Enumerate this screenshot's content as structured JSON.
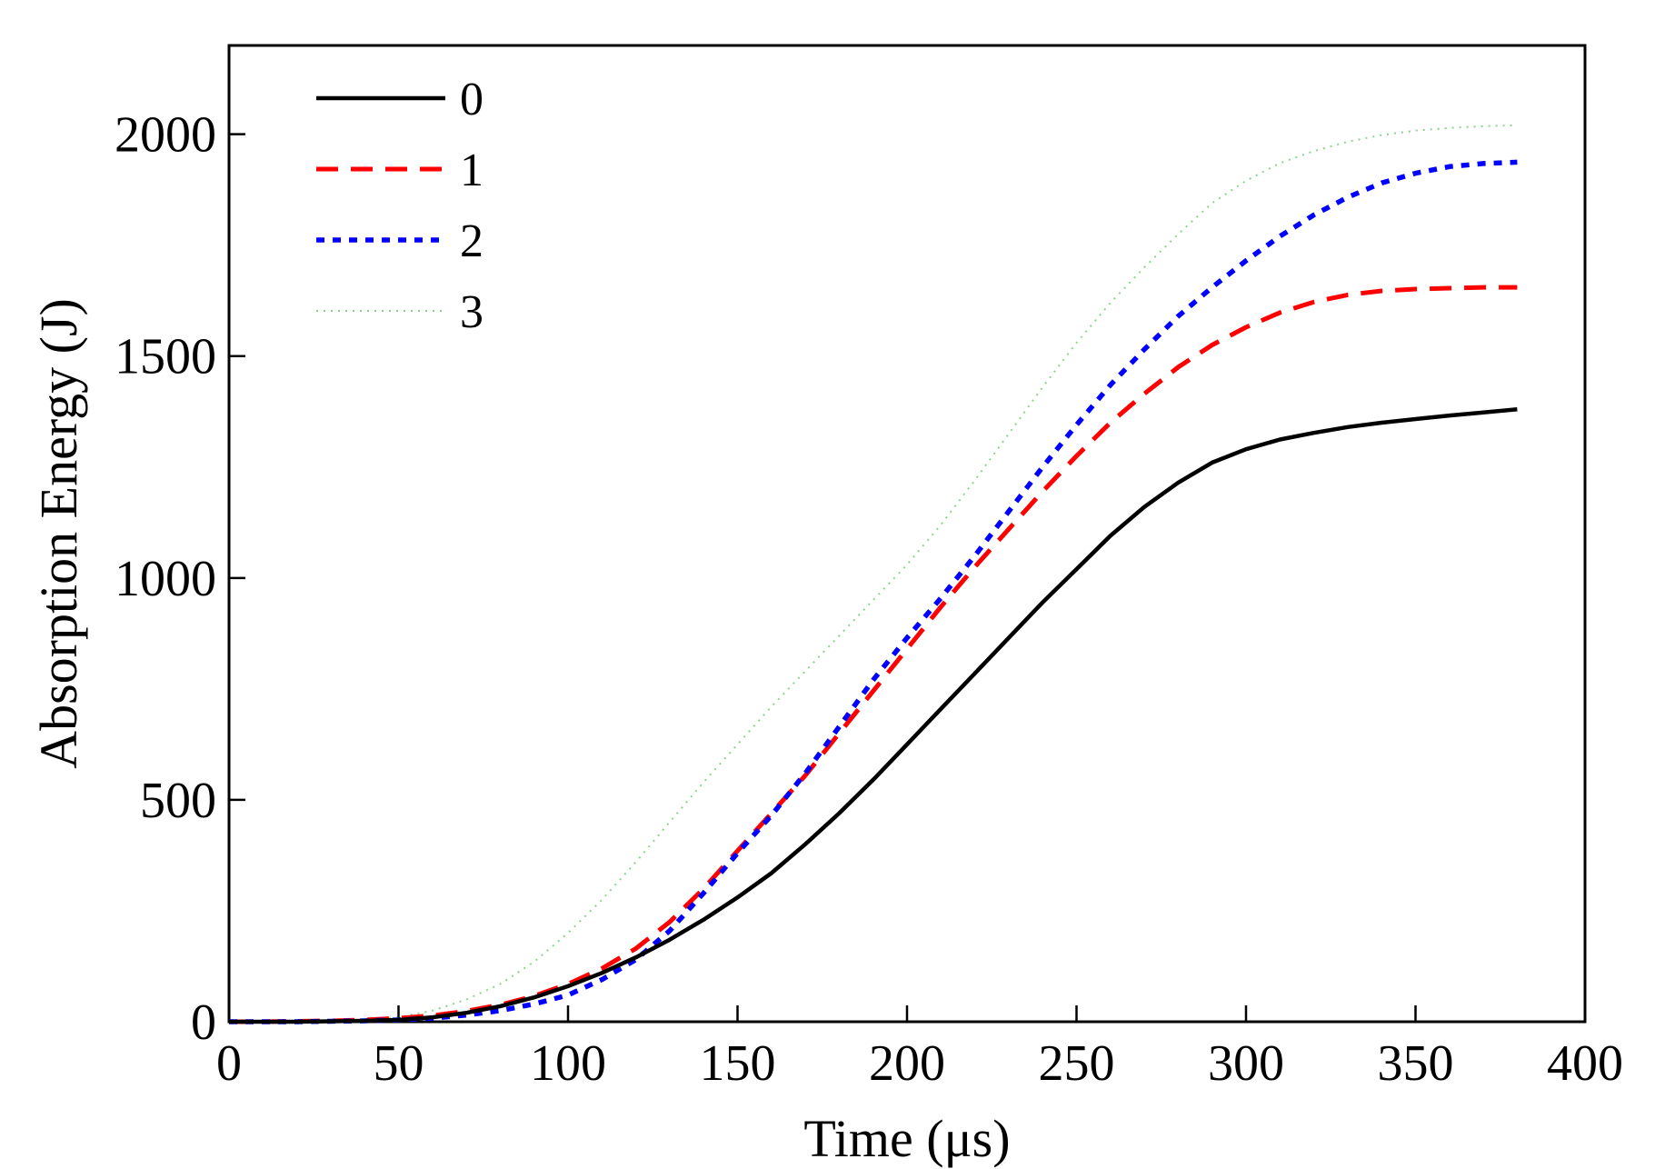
{
  "chart_data": {
    "type": "line",
    "title": "",
    "xlabel": "Time (μs)",
    "ylabel": "Absorption Energy (J)",
    "xlim": [
      0,
      400
    ],
    "ylim": [
      0,
      2200
    ],
    "x_ticks": [
      0,
      50,
      100,
      150,
      200,
      250,
      300,
      350,
      400
    ],
    "y_ticks": [
      0,
      500,
      1000,
      1500,
      2000
    ],
    "grid": false,
    "legend_position": "top-left",
    "x": [
      0,
      10,
      20,
      30,
      40,
      50,
      60,
      70,
      80,
      90,
      100,
      110,
      120,
      130,
      140,
      150,
      160,
      170,
      180,
      190,
      200,
      210,
      220,
      230,
      240,
      250,
      260,
      270,
      280,
      290,
      300,
      310,
      320,
      330,
      340,
      350,
      360,
      370,
      380
    ],
    "series": [
      {
        "name": "0",
        "color": "#000000",
        "style": "solid",
        "values": [
          0,
          0,
          0,
          1,
          2,
          4,
          10,
          20,
          35,
          55,
          80,
          110,
          145,
          185,
          230,
          280,
          335,
          400,
          470,
          545,
          625,
          705,
          785,
          865,
          945,
          1020,
          1095,
          1160,
          1215,
          1260,
          1290,
          1312,
          1327,
          1340,
          1350,
          1358,
          1366,
          1373,
          1380
        ]
      },
      {
        "name": "1",
        "color": "#ff0000",
        "style": "dashed",
        "values": [
          0,
          0,
          1,
          2,
          4,
          8,
          14,
          24,
          38,
          58,
          85,
          120,
          165,
          225,
          300,
          385,
          470,
          555,
          650,
          745,
          840,
          935,
          1025,
          1110,
          1195,
          1275,
          1350,
          1415,
          1475,
          1525,
          1565,
          1598,
          1622,
          1638,
          1647,
          1651,
          1653,
          1655,
          1655
        ]
      },
      {
        "name": "2",
        "color": "#0000ff",
        "style": "dotted",
        "values": [
          0,
          0,
          0,
          1,
          2,
          4,
          8,
          15,
          25,
          40,
          60,
          95,
          140,
          205,
          290,
          380,
          465,
          560,
          665,
          770,
          865,
          955,
          1050,
          1150,
          1250,
          1345,
          1435,
          1515,
          1590,
          1655,
          1715,
          1770,
          1818,
          1858,
          1890,
          1912,
          1927,
          1934,
          1937
        ]
      },
      {
        "name": "3",
        "color": "#00a000",
        "style": "faint-dotted",
        "values": [
          0,
          0,
          1,
          2,
          5,
          10,
          25,
          50,
          85,
          135,
          200,
          275,
          360,
          450,
          540,
          625,
          710,
          790,
          870,
          950,
          1030,
          1120,
          1220,
          1325,
          1430,
          1530,
          1620,
          1700,
          1775,
          1845,
          1895,
          1935,
          1962,
          1983,
          1998,
          2008,
          2014,
          2018,
          2020
        ]
      }
    ]
  }
}
